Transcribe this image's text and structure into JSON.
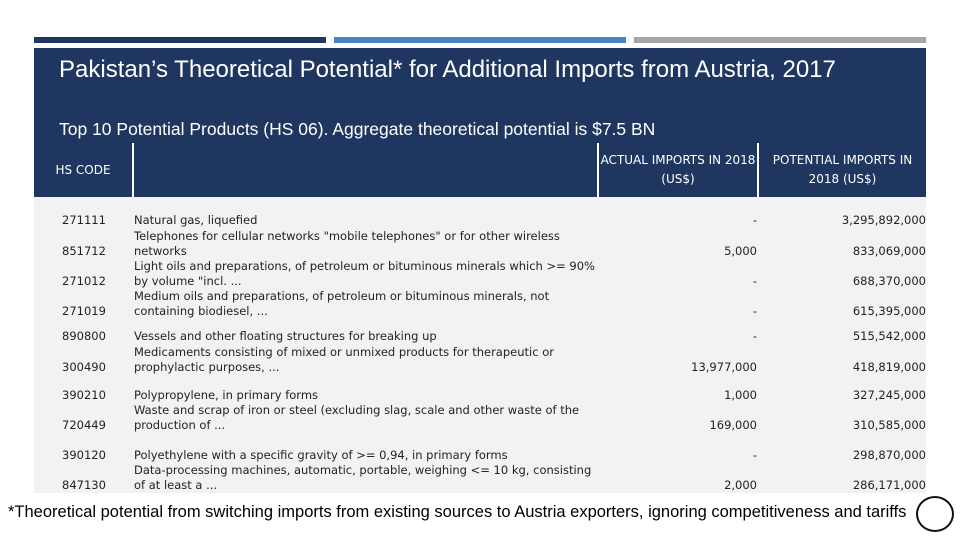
{
  "colors": {
    "bar1": "#1f3760",
    "bar2": "#4a86c5",
    "bar3": "#a6a6a6",
    "header_bg": "#1f3760",
    "table_bg": "#f2f2f2"
  },
  "header": {
    "title": "Pakistan’s Theoretical Potential* for Additional Imports from Austria, 2017",
    "subtitle": "Top 10 Potential Products (HS 06). Aggregate theoretical potential is $7.5 BN"
  },
  "table": {
    "columns": {
      "hs_code": "HS CODE",
      "actual": "ACTUAL IMPORTS IN 2018 (US$)",
      "potential": "POTENTIAL IMPORTS IN 2018 (US$)"
    },
    "rows": [
      {
        "code": "271111",
        "desc": "Natural gas, liquefied",
        "actual": "-",
        "potential": "3,295,892,000"
      },
      {
        "code": "851712",
        "desc": "Telephones for cellular networks \"mobile telephones\" or for other wireless networks",
        "actual": "5,000",
        "potential": "833,069,000"
      },
      {
        "code": "271012",
        "desc": "Light oils and preparations, of petroleum or bituminous minerals which >= 90% by volume \"incl. ...",
        "actual": "-",
        "potential": "688,370,000"
      },
      {
        "code": "271019",
        "desc": "Medium oils and preparations, of petroleum or bituminous minerals, not containing biodiesel, ...",
        "actual": "-",
        "potential": "615,395,000"
      },
      {
        "code": "890800",
        "desc": "Vessels and other floating structures for breaking up",
        "actual": "-",
        "potential": "515,542,000"
      },
      {
        "code": "300490",
        "desc": "Medicaments consisting of mixed or unmixed products for therapeutic or prophylactic purposes, ...",
        "actual": "13,977,000",
        "potential": "418,819,000"
      },
      {
        "code": "390210",
        "desc": "Polypropylene, in primary forms",
        "actual": "1,000",
        "potential": "327,245,000"
      },
      {
        "code": "720449",
        "desc": "Waste and scrap of iron or steel (excluding slag, scale and other waste of the production of ...",
        "actual": "169,000",
        "potential": "310,585,000"
      },
      {
        "code": "390120",
        "desc": "Polyethylene with a specific gravity of >= 0,94, in primary forms",
        "actual": "-",
        "potential": "298,870,000"
      },
      {
        "code": "847130",
        "desc": "Data-processing machines, automatic, portable, weighing <= 10 kg, consisting of at least a ...",
        "actual": "2,000",
        "potential": "286,171,000"
      }
    ]
  },
  "footnote": "*Theoretical potential from switching imports from existing sources to Austria exporters, ignoring competitiveness and tariffs"
}
